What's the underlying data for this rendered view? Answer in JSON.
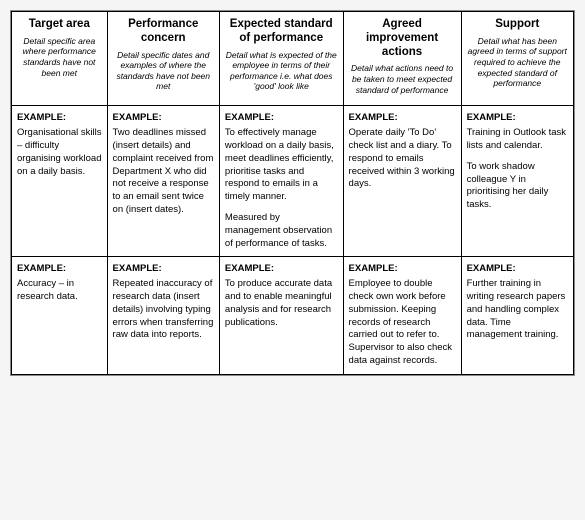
{
  "columns": [
    {
      "title": "Target area",
      "sub": "Detail specific area where performance standards have not been met"
    },
    {
      "title": "Performance concern",
      "sub": "Detail specific dates and examples of where the standards have not been met"
    },
    {
      "title": "Expected standard of performance",
      "sub": "Detail what is expected of the employee in terms of their performance i.e. what does 'good' look like"
    },
    {
      "title": "Agreed improvement actions",
      "sub": "Detail what actions need to be taken to meet expected standard of performance"
    },
    {
      "title": "Support",
      "sub": "Detail what has been agreed in terms of support required to achieve the expected standard of performance"
    }
  ],
  "rows": [
    {
      "target": "Organisational skills – difficulty organising workload on a daily basis.",
      "concern": "Two deadlines missed (insert details) and complaint received from Department X who did not receive a response to an email sent twice on (insert dates).",
      "expected_p1": "To effectively manage workload on a daily basis, meet deadlines efficiently, prioritise tasks and respond to emails in a timely manner.",
      "expected_p2": "Measured by management observation of performance of tasks.",
      "actions": "Operate daily 'To Do' check list and a diary. To respond to emails received within 3 working days.",
      "support_p1": "Training in Outlook task lists and calendar.",
      "support_p2": "To work shadow colleague Y in prioritising her daily tasks."
    },
    {
      "target": "Accuracy – in research data.",
      "concern": "Repeated inaccuracy of research data (insert details) involving typing errors when transferring raw data into reports.",
      "expected_p1": "To produce accurate data and to enable meaningful analysis and for research publications.",
      "expected_p2": "",
      "actions": "Employee to double check own work before submission. Keeping records of research carried out to refer to. Supervisor to also check data against records.",
      "support_p1": "Further training in writing research papers and handling complex data. Time management training.",
      "support_p2": ""
    }
  ],
  "label_example": "EXAMPLE:"
}
